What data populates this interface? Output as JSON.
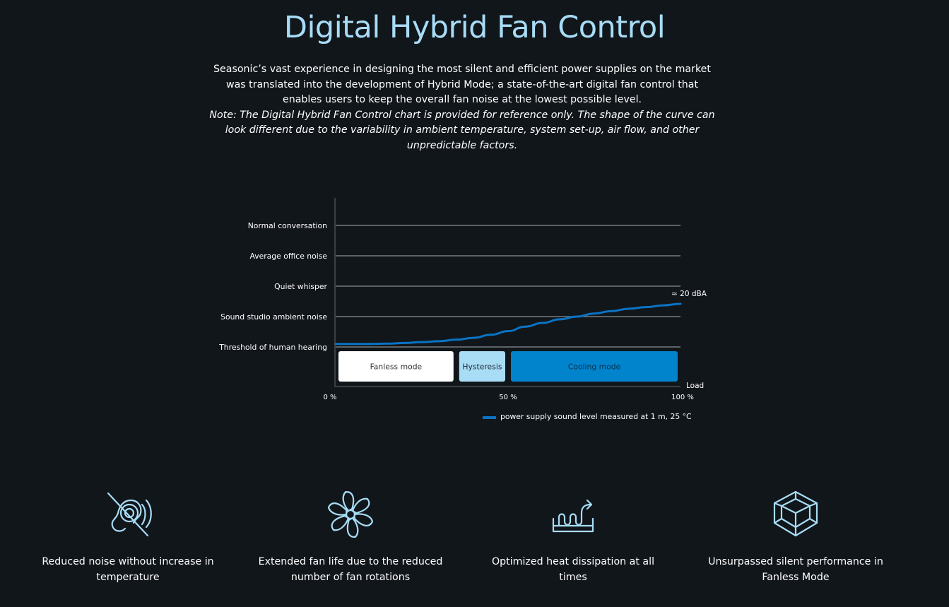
{
  "page": {
    "title": "Digital Hybrid Fan Control",
    "intro": "Seasonic’s vast experience in designing the most silent and efficient power supplies on the market was translated into the development of Hybrid Mode; a state-of-the-art digital fan control that enables users to keep the overall fan noise at the lowest possible level.",
    "note": "Note: The Digital Hybrid Fan Control chart is provided for reference only. The shape of the curve can look different due to the variability in ambient temperature, system set-up, air flow, and other unpredictable factors."
  },
  "chart_data": {
    "type": "line",
    "title": "",
    "xlabel": "Load",
    "ylabel": "",
    "xlim": [
      0,
      100
    ],
    "x_ticks": [
      "0 %",
      "50 %",
      "100 %"
    ],
    "x_tick_values": [
      0,
      50,
      100
    ],
    "y_levels": [
      "Threshold of human hearing",
      "Sound studio ambient noise",
      "Quiet whisper",
      "Average office noise",
      "Normal conversation"
    ],
    "ylim": [
      0,
      5
    ],
    "grid": true,
    "series": [
      {
        "name": "power supply sound level measured at 1 m, 25 °C",
        "color": "#0a73c4",
        "x": [
          0,
          5,
          10,
          15,
          20,
          25,
          30,
          35,
          40,
          45,
          50,
          55,
          60,
          65,
          70,
          75,
          80,
          85,
          90,
          95,
          100
        ],
        "y": [
          0.1,
          0.1,
          0.1,
          0.11,
          0.13,
          0.16,
          0.19,
          0.24,
          0.3,
          0.4,
          0.52,
          0.67,
          0.79,
          0.91,
          1.0,
          1.1,
          1.18,
          1.26,
          1.31,
          1.37,
          1.42
        ]
      }
    ],
    "annotations": [
      {
        "text": "≈ 20 dBA",
        "x": 100,
        "y": 1.42
      }
    ],
    "regions": [
      {
        "label": "Fanless mode",
        "start": 0,
        "end": 35,
        "fill": "#ffffff",
        "text_color": "#333333"
      },
      {
        "label": "Hysteresis",
        "start": 35,
        "end": 50,
        "fill": "#a9dcf5",
        "text_color": "#1c2a36"
      },
      {
        "label": "Cooling mode",
        "start": 50,
        "end": 100,
        "fill": "#0284cc",
        "text_color": "#0b2f4d"
      }
    ],
    "legend_position": "bottom-right"
  },
  "features": [
    {
      "icon": "noise-reduction-icon",
      "label": "Reduced noise without increase in temperature"
    },
    {
      "icon": "fan-icon",
      "label": "Extended fan life due to the reduced number of fan rotations"
    },
    {
      "icon": "heat-dissipation-icon",
      "label": "Optimized heat dissipation at all times"
    },
    {
      "icon": "cube-icon",
      "label": "Unsurpassed silent performance in Fanless Mode"
    }
  ],
  "colors": {
    "background": "#11161b",
    "title": "#a8dcf6",
    "icon": "#a8dcf6",
    "gridline": "#8a8f94",
    "axis": "#3a4047"
  }
}
